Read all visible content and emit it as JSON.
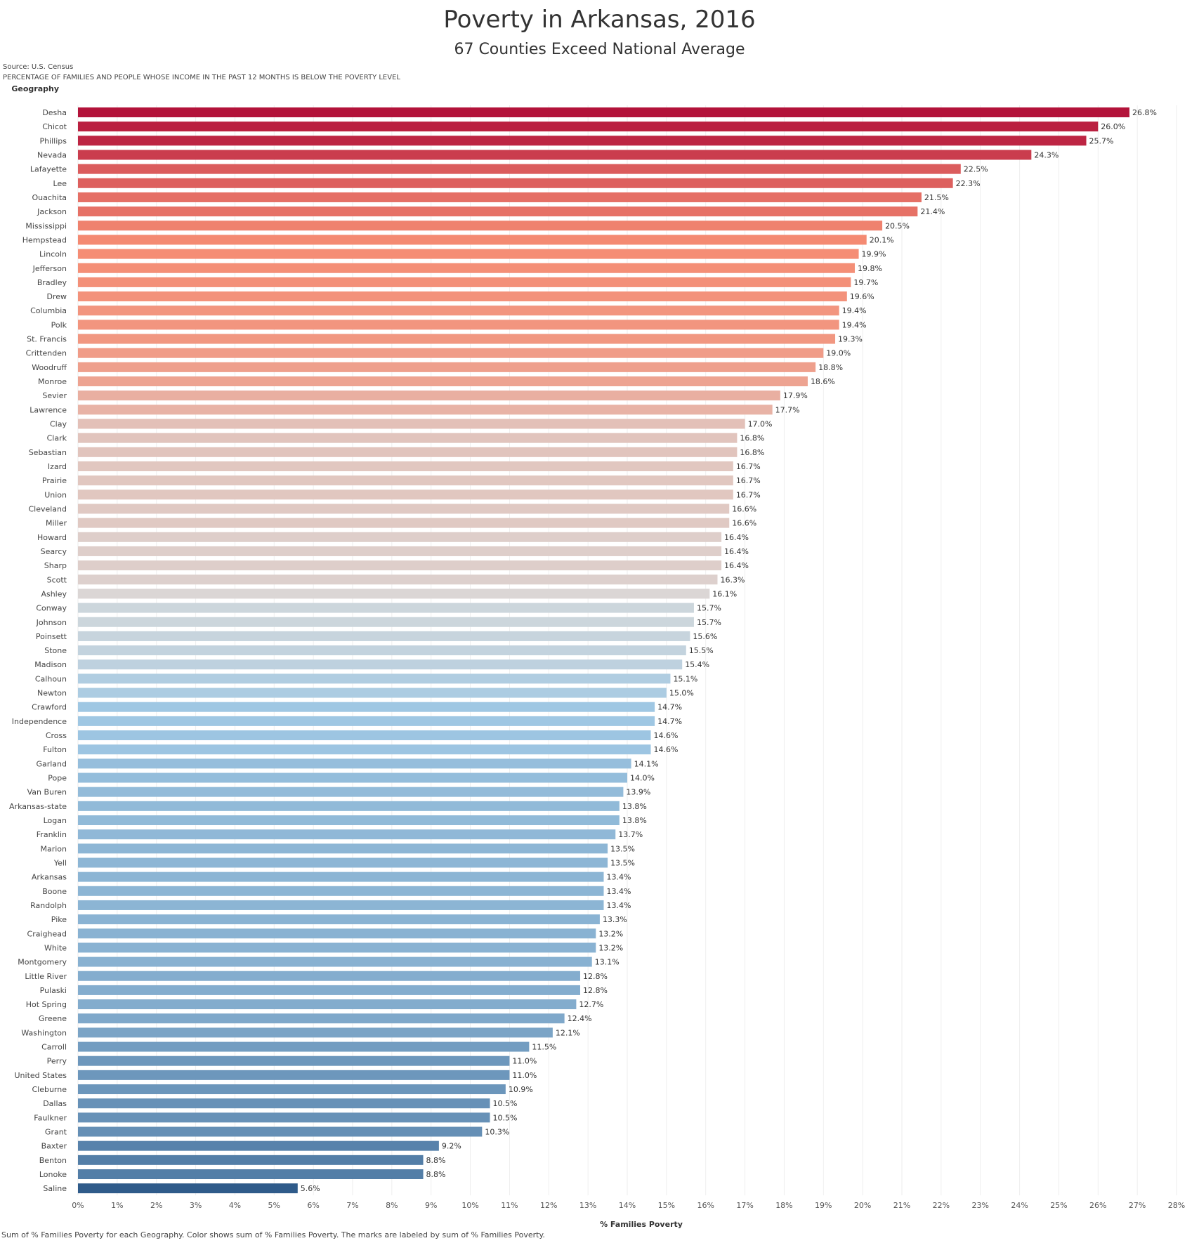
{
  "header": {
    "title": "Poverty in Arkansas, 2016",
    "subtitle": "67 Counties Exceed National Average",
    "source": "Source: U.S. Census",
    "description": "PERCENTAGE OF FAMILIES AND PEOPLE WHOSE INCOME IN THE PAST 12 MONTHS IS BELOW THE POVERTY LEVEL"
  },
  "footer": {
    "note": "Sum of % Families Poverty for each Geography.  Color shows sum of % Families Poverty.  The marks are labeled by sum of % Families Poverty."
  },
  "colors": {
    "high": "#b3133a",
    "mid": "#dadada",
    "low": "#2f5b8a",
    "gridline": "#eeeeee"
  },
  "chart_data": {
    "type": "bar",
    "orientation": "horizontal",
    "category_axis_label": "Geography",
    "xlabel": "% Families Poverty",
    "xlim": [
      0,
      28
    ],
    "x_ticks": [
      "0%",
      "1%",
      "2%",
      "3%",
      "4%",
      "5%",
      "6%",
      "7%",
      "8%",
      "9%",
      "10%",
      "11%",
      "12%",
      "13%",
      "14%",
      "15%",
      "16%",
      "17%",
      "18%",
      "19%",
      "20%",
      "21%",
      "22%",
      "23%",
      "24%",
      "25%",
      "26%",
      "27%",
      "28%"
    ],
    "value_unit": "%",
    "categories": [
      "Desha",
      "Chicot",
      "Phillips",
      "Nevada",
      "Lafayette",
      "Lee",
      "Ouachita",
      "Jackson",
      "Mississippi",
      "Hempstead",
      "Lincoln",
      "Jefferson",
      "Bradley",
      "Drew",
      "Columbia",
      "Polk",
      "St. Francis",
      "Crittenden",
      "Woodruff",
      "Monroe",
      "Sevier",
      "Lawrence",
      "Clay",
      "Clark",
      "Sebastian",
      "Izard",
      "Prairie",
      "Union",
      "Cleveland",
      "Miller",
      "Howard",
      "Searcy",
      "Sharp",
      "Scott",
      "Ashley",
      "Conway",
      "Johnson",
      "Poinsett",
      "Stone",
      "Madison",
      "Calhoun",
      "Newton",
      "Crawford",
      "Independence",
      "Cross",
      "Fulton",
      "Garland",
      "Pope",
      "Van Buren",
      "Arkansas-state",
      "Logan",
      "Franklin",
      "Marion",
      "Yell",
      "Arkansas",
      "Boone",
      "Randolph",
      "Pike",
      "Craighead",
      "White",
      "Montgomery",
      "Little River",
      "Pulaski",
      "Hot Spring",
      "Greene",
      "Washington",
      "Carroll",
      "Perry",
      "United States",
      "Cleburne",
      "Dallas",
      "Faulkner",
      "Grant",
      "Baxter",
      "Benton",
      "Lonoke",
      "Saline"
    ],
    "values": [
      26.8,
      26.0,
      25.7,
      24.3,
      22.5,
      22.3,
      21.5,
      21.4,
      20.5,
      20.1,
      19.9,
      19.8,
      19.7,
      19.6,
      19.4,
      19.4,
      19.3,
      19.0,
      18.8,
      18.6,
      17.9,
      17.7,
      17.0,
      16.8,
      16.8,
      16.7,
      16.7,
      16.7,
      16.6,
      16.6,
      16.4,
      16.4,
      16.4,
      16.3,
      16.1,
      15.7,
      15.7,
      15.6,
      15.5,
      15.4,
      15.1,
      15.0,
      14.7,
      14.7,
      14.6,
      14.6,
      14.1,
      14.0,
      13.9,
      13.8,
      13.8,
      13.7,
      13.5,
      13.5,
      13.4,
      13.4,
      13.4,
      13.3,
      13.2,
      13.2,
      13.1,
      12.8,
      12.8,
      12.7,
      12.4,
      12.1,
      11.5,
      11.0,
      11.0,
      10.9,
      10.5,
      10.5,
      10.3,
      9.2,
      8.8,
      8.8,
      5.6
    ],
    "grid": "vertical gridlines"
  }
}
